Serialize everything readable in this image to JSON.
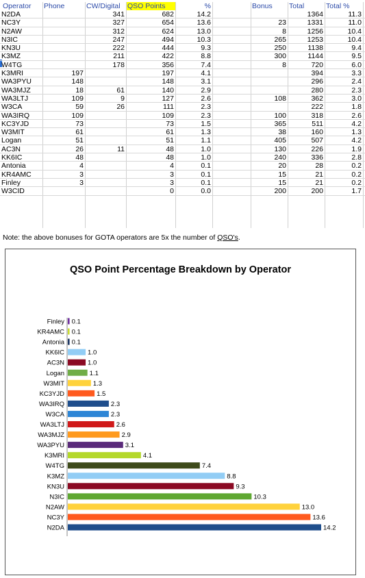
{
  "table": {
    "headers": {
      "operator": "Operator",
      "phone": "Phone",
      "cw_digital": "CW/Digital",
      "qso_points": "QSO Points",
      "pct": "%",
      "bonus": "Bonus",
      "total": "Total",
      "total_pct": "Total %"
    },
    "rows": [
      {
        "operator": "N2DA",
        "phone": "",
        "cw": "341",
        "points": "682",
        "pct": "14.2",
        "bonus": "",
        "total": "1364",
        "total_pct": "11.3"
      },
      {
        "operator": "NC3Y",
        "phone": "",
        "cw": "327",
        "points": "654",
        "pct": "13.6",
        "bonus": "23",
        "total": "1331",
        "total_pct": "11.0"
      },
      {
        "operator": "N2AW",
        "phone": "",
        "cw": "312",
        "points": "624",
        "pct": "13.0",
        "bonus": "8",
        "total": "1256",
        "total_pct": "10.4"
      },
      {
        "operator": "N3IC",
        "phone": "",
        "cw": "247",
        "points": "494",
        "pct": "10.3",
        "bonus": "265",
        "total": "1253",
        "total_pct": "10.4"
      },
      {
        "operator": "KN3U",
        "phone": "",
        "cw": "222",
        "points": "444",
        "pct": "9.3",
        "bonus": "250",
        "total": "1138",
        "total_pct": "9.4"
      },
      {
        "operator": "K3MZ",
        "phone": "",
        "cw": "211",
        "points": "422",
        "pct": "8.8",
        "bonus": "300",
        "total": "1144",
        "total_pct": "9.5"
      },
      {
        "operator": "W4TG",
        "phone": "",
        "cw": "178",
        "points": "356",
        "pct": "7.4",
        "bonus": "8",
        "total": "720",
        "total_pct": "6.0"
      },
      {
        "operator": "K3MRI",
        "phone": "197",
        "cw": "",
        "points": "197",
        "pct": "4.1",
        "bonus": "",
        "total": "394",
        "total_pct": "3.3"
      },
      {
        "operator": "WA3PYU",
        "phone": "148",
        "cw": "",
        "points": "148",
        "pct": "3.1",
        "bonus": "",
        "total": "296",
        "total_pct": "2.4"
      },
      {
        "operator": "WA3MJZ",
        "phone": "18",
        "cw": "61",
        "points": "140",
        "pct": "2.9",
        "bonus": "",
        "total": "280",
        "total_pct": "2.3"
      },
      {
        "operator": "WA3LTJ",
        "phone": "109",
        "cw": "9",
        "points": "127",
        "pct": "2.6",
        "bonus": "108",
        "total": "362",
        "total_pct": "3.0"
      },
      {
        "operator": "W3CA",
        "phone": "59",
        "cw": "26",
        "points": "111",
        "pct": "2.3",
        "bonus": "",
        "total": "222",
        "total_pct": "1.8"
      },
      {
        "operator": "WA3IRQ",
        "phone": "109",
        "cw": "",
        "points": "109",
        "pct": "2.3",
        "bonus": "100",
        "total": "318",
        "total_pct": "2.6"
      },
      {
        "operator": "KC3YJD",
        "phone": "73",
        "cw": "",
        "points": "73",
        "pct": "1.5",
        "bonus": "365",
        "total": "511",
        "total_pct": "4.2"
      },
      {
        "operator": "W3MIT",
        "phone": "61",
        "cw": "",
        "points": "61",
        "pct": "1.3",
        "bonus": "38",
        "total": "160",
        "total_pct": "1.3"
      },
      {
        "operator": "Logan",
        "phone": "51",
        "cw": "",
        "points": "51",
        "pct": "1.1",
        "bonus": "405",
        "total": "507",
        "total_pct": "4.2"
      },
      {
        "operator": "AC3N",
        "phone": "26",
        "cw": "11",
        "points": "48",
        "pct": "1.0",
        "bonus": "130",
        "total": "226",
        "total_pct": "1.9"
      },
      {
        "operator": "KK6IC",
        "phone": "48",
        "cw": "",
        "points": "48",
        "pct": "1.0",
        "bonus": "240",
        "total": "336",
        "total_pct": "2.8"
      },
      {
        "operator": "Antonia",
        "phone": "4",
        "cw": "",
        "points": "4",
        "pct": "0.1",
        "bonus": "20",
        "total": "28",
        "total_pct": "0.2"
      },
      {
        "operator": "KR4AMC",
        "phone": "3",
        "cw": "",
        "points": "3",
        "pct": "0.1",
        "bonus": "15",
        "total": "21",
        "total_pct": "0.2"
      },
      {
        "operator": "Finley",
        "phone": "3",
        "cw": "",
        "points": "3",
        "pct": "0.1",
        "bonus": "15",
        "total": "21",
        "total_pct": "0.2"
      },
      {
        "operator": "W3CID",
        "phone": "",
        "cw": "",
        "points": "0",
        "pct": "0.0",
        "bonus": "200",
        "total": "200",
        "total_pct": "1.7"
      }
    ],
    "note_prefix": "Note: the above bonuses for GOTA operators are 5x the number of ",
    "note_link": "QSO's",
    "note_suffix": "."
  },
  "chart_data": {
    "type": "bar",
    "orientation": "horizontal",
    "title": "QSO Point Percentage Breakdown by Operator",
    "xlabel": "",
    "ylabel": "",
    "xlim": [
      0,
      15
    ],
    "grid": false,
    "legend": "none",
    "categories": [
      "Finley",
      "KR4AMC",
      "Antonia",
      "KK6IC",
      "AC3N",
      "Logan",
      "W3MIT",
      "KC3YJD",
      "WA3IRQ",
      "W3CA",
      "WA3LTJ",
      "WA3MJZ",
      "WA3PYU",
      "K3MRI",
      "W4TG",
      "K3MZ",
      "KN3U",
      "N3IC",
      "N2AW",
      "NC3Y",
      "N2DA"
    ],
    "values": [
      0.1,
      0.1,
      0.1,
      1.0,
      1.0,
      1.1,
      1.3,
      1.5,
      2.3,
      2.3,
      2.6,
      2.9,
      3.1,
      4.1,
      7.4,
      8.8,
      9.3,
      10.3,
      13.0,
      13.6,
      14.2
    ],
    "value_labels": [
      "0.1",
      "0.1",
      "0.1",
      "1.0",
      "1.0",
      "1.1",
      "1.3",
      "1.5",
      "2.3",
      "2.3",
      "2.6",
      "2.9",
      "3.1",
      "4.1",
      "7.4",
      "8.8",
      "9.3",
      "10.3",
      "13.0",
      "13.6",
      "14.2"
    ],
    "colors": [
      "#7030a0",
      "#c8dc32",
      "#1f3864",
      "#92cdf5",
      "#8b0a23",
      "#70ad47",
      "#ffd23c",
      "#ff5a1e",
      "#1f4e8c",
      "#2e86d6",
      "#d01a1a",
      "#ff9a1e",
      "#5a2a7a",
      "#b4d82a",
      "#3d4a1a",
      "#92cdf5",
      "#8b0a23",
      "#5fa832",
      "#ffd23c",
      "#ff5a1e",
      "#1f4e8c"
    ]
  }
}
